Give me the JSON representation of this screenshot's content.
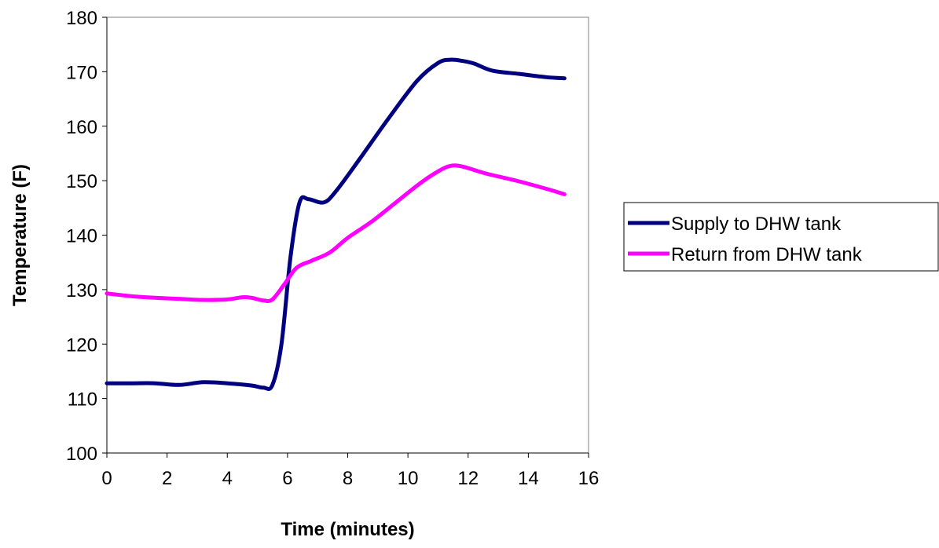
{
  "chart_data": {
    "type": "line",
    "title": "",
    "xlabel": "Time (minutes)",
    "ylabel": "Temperature (F)",
    "xlim": [
      0,
      16
    ],
    "ylim": [
      100,
      180
    ],
    "x_ticks": [
      0,
      2,
      4,
      6,
      8,
      10,
      12,
      14,
      16
    ],
    "y_ticks": [
      100,
      110,
      120,
      130,
      140,
      150,
      160,
      170,
      180
    ],
    "x_tick_labels": [
      "0",
      "2",
      "4",
      "6",
      "8",
      "10",
      "12",
      "14",
      "16"
    ],
    "y_tick_labels": [
      "100",
      "110",
      "120",
      "130",
      "140",
      "150",
      "160",
      "170",
      "180"
    ],
    "grid": false,
    "legend_position": "right",
    "series": [
      {
        "name": "Supply to DHW tank",
        "color": "#000080",
        "x": [
          0,
          0.8,
          1.6,
          2.4,
          3.2,
          4.0,
          4.8,
          5.2,
          5.5,
          5.8,
          6.1,
          6.4,
          6.7,
          7.2,
          7.6,
          8.4,
          9.3,
          10.3,
          11.0,
          11.4,
          11.8,
          12.2,
          12.8,
          13.7,
          14.6,
          15.2
        ],
        "values": [
          112.8,
          112.8,
          112.8,
          112.5,
          113.0,
          112.8,
          112.4,
          112.0,
          112.5,
          120,
          136,
          146,
          146.6,
          146,
          148,
          154,
          161,
          168.3,
          171.6,
          172.2,
          172.0,
          171.5,
          170.2,
          169.6,
          169,
          168.8
        ]
      },
      {
        "name": "Return from DHW tank",
        "color": "#ff00ff",
        "x": [
          0,
          0.8,
          1.6,
          2.4,
          3.2,
          4.0,
          4.5,
          4.8,
          5.2,
          5.5,
          5.9,
          6.3,
          6.8,
          7.4,
          8.0,
          8.8,
          9.6,
          10.4,
          11.0,
          11.4,
          11.8,
          12.6,
          13.6,
          14.6,
          15.2
        ],
        "values": [
          129.3,
          128.8,
          128.5,
          128.3,
          128.1,
          128.2,
          128.6,
          128.5,
          128.0,
          128.2,
          131.0,
          134.0,
          135.3,
          136.8,
          139.5,
          142.5,
          146.0,
          149.5,
          151.7,
          152.7,
          152.6,
          151.3,
          150,
          148.5,
          147.5
        ]
      }
    ]
  }
}
